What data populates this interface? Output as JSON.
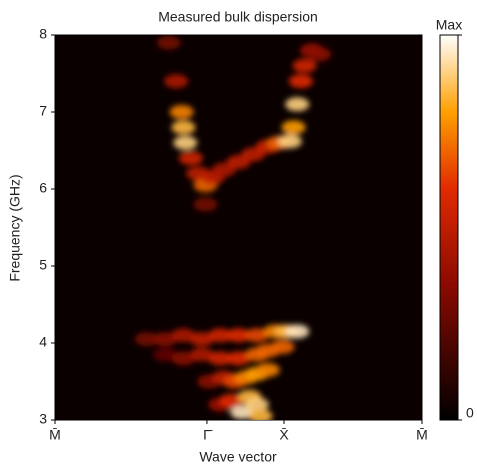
{
  "chart_data": {
    "type": "heatmap",
    "title": "Measured bulk dispersion",
    "x_label": "Wave vector",
    "y_label": "Frequency (GHz)",
    "xlim": [
      0,
      100
    ],
    "xticks": [
      {
        "value": 0,
        "label": "M̄"
      },
      {
        "value": 41.4,
        "label": "Γ̄"
      },
      {
        "value": 62.4,
        "label": "X̄"
      },
      {
        "value": 100,
        "label": "M̄"
      }
    ],
    "ylim": [
      3,
      8
    ],
    "yticks": [
      3,
      4,
      5,
      6,
      7,
      8
    ],
    "zlim": [
      0,
      1
    ],
    "zticks": [
      0,
      {
        "value": 1,
        "label": "Max"
      }
    ],
    "points": {
      "x": [
        31,
        33,
        34.5,
        35,
        35.5,
        37,
        39,
        41,
        41,
        43,
        46,
        50,
        54,
        58,
        61,
        64,
        65,
        66,
        67,
        68,
        70,
        72,
        25,
        30,
        35,
        40,
        45,
        50,
        55,
        60,
        63,
        66,
        30,
        35,
        40,
        45,
        50,
        55,
        58,
        62,
        42,
        46,
        49,
        52,
        55,
        58,
        45,
        48,
        51,
        53,
        55,
        56
      ],
      "y": [
        7.9,
        7.4,
        7.0,
        6.8,
        6.6,
        6.4,
        6.2,
        6.05,
        5.8,
        6.15,
        6.25,
        6.35,
        6.45,
        6.55,
        6.6,
        6.62,
        6.8,
        7.1,
        7.4,
        7.6,
        7.8,
        7.75,
        4.05,
        4.05,
        4.1,
        4.05,
        4.1,
        4.1,
        4.1,
        4.15,
        4.15,
        4.15,
        3.85,
        3.8,
        3.85,
        3.8,
        3.8,
        3.85,
        3.9,
        3.95,
        3.5,
        3.55,
        3.5,
        3.55,
        3.6,
        3.65,
        3.2,
        3.25,
        3.1,
        3.3,
        3.2,
        3.05
      ],
      "z": [
        0.3,
        0.45,
        0.75,
        0.85,
        0.9,
        0.55,
        0.5,
        0.7,
        0.3,
        0.5,
        0.45,
        0.5,
        0.5,
        0.55,
        0.7,
        0.9,
        0.8,
        0.9,
        0.6,
        0.55,
        0.4,
        0.35,
        0.3,
        0.35,
        0.45,
        0.5,
        0.55,
        0.6,
        0.65,
        0.75,
        0.85,
        0.95,
        0.25,
        0.35,
        0.45,
        0.55,
        0.6,
        0.7,
        0.7,
        0.7,
        0.35,
        0.5,
        0.65,
        0.75,
        0.8,
        0.75,
        0.4,
        0.6,
        0.95,
        0.85,
        0.9,
        0.85
      ]
    }
  }
}
